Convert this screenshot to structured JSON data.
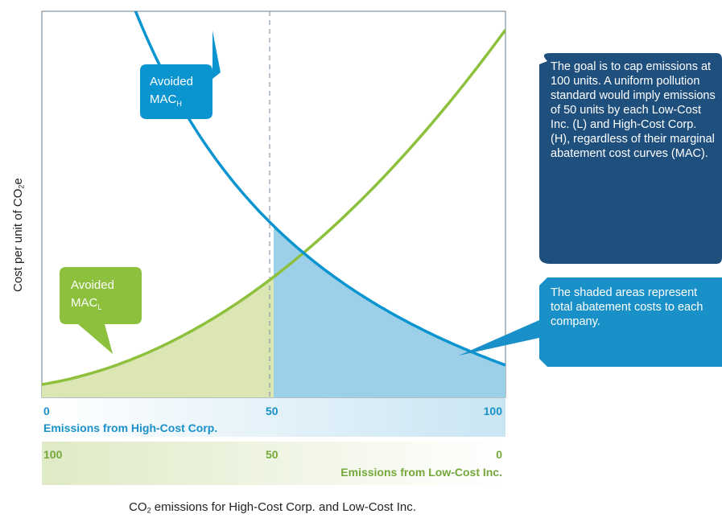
{
  "chart_data": {
    "type": "line",
    "x_axis_top": {
      "label": "Emissions from High-Cost Corp.",
      "ticks": [
        "0",
        "50",
        "100"
      ],
      "range": [
        0,
        100
      ]
    },
    "x_axis_bottom": {
      "label": "Emissions from Low-Cost Inc.",
      "ticks": [
        "100",
        "50",
        "0"
      ]
    },
    "ylabel": "Cost per unit of CO",
    "ylabel_sub": "2",
    "ylabel_tail": "e",
    "xlabel": "CO",
    "xlabel_sub": "2",
    "xlabel_tail": " emissions for High-Cost Corp. and Low-Cost Inc.",
    "cap_line_x": 50,
    "series": [
      {
        "key": "mac_h",
        "color": "#0a95d0"
      },
      {
        "key": "mac_l",
        "color": "#8dc03c"
      }
    ],
    "shaded_regions": [
      {
        "series": "mac_l",
        "from": 0,
        "to": 50,
        "color": "#dbe6b2"
      },
      {
        "series": "mac_h",
        "from": 50,
        "to": 100,
        "color": "#9ccfe8"
      }
    ]
  },
  "callouts": {
    "avoided_h": {
      "text": "Avoided",
      "mac": "MAC",
      "sub": "H",
      "color": "#0a95d0"
    },
    "avoided_l": {
      "text": "Avoided",
      "mac": "MAC",
      "sub": "L",
      "color": "#8dc03c"
    }
  },
  "notes": {
    "goal": {
      "text": "The goal is to cap emissions at 100 units. A uniform pollution standard would imply emissions of 50 units by each Low-Cost Inc. (L) and High-Cost Corp. (H), regardless of their marginal abatement cost curves (MAC).",
      "color": "#1e4f7d"
    },
    "shaded": {
      "text": "The shaded areas represent total abatement costs to each company.",
      "color": "#1a90c8"
    }
  }
}
